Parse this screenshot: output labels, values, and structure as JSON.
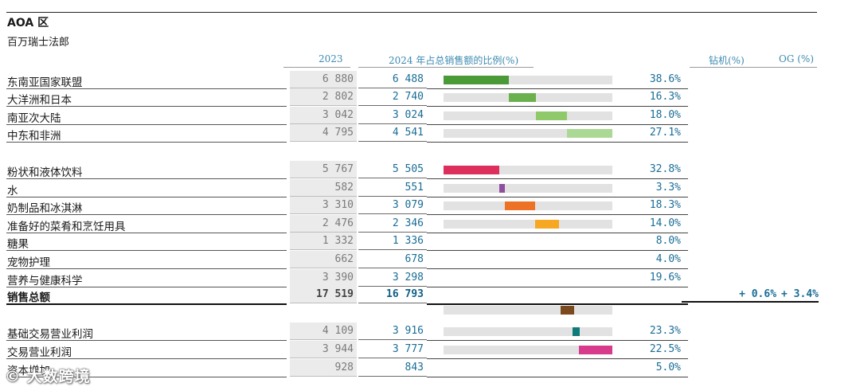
{
  "title": "AOA 区",
  "subtitle": "百万瑞士法郎",
  "headers": {
    "year_2023": "2023",
    "year_2024_share": "2024 年占总销售额的比例(%)",
    "organic": "钻机(%)",
    "og": "OG (%)"
  },
  "regions": [
    {
      "label": "东南亚国家联盟",
      "v2023": "6 880",
      "v2024": "6 488",
      "pct": "38.6%",
      "share": 38.6,
      "color": "#4a9a38"
    },
    {
      "label": "大洋洲和日本",
      "v2023": "2 802",
      "v2024": "2 740",
      "pct": "16.3%",
      "share": 16.3,
      "color": "#6ab04c"
    },
    {
      "label": "南亚次大陆",
      "v2023": "3 042",
      "v2024": "3 024",
      "pct": "18.0%",
      "share": 18.0,
      "color": "#8fc96a"
    },
    {
      "label": "中东和非洲",
      "v2023": "4 795",
      "v2024": "4 541",
      "pct": "27.1%",
      "share": 27.1,
      "color": "#acd895"
    }
  ],
  "categories": [
    {
      "label": "粉状和液体饮料",
      "v2023": "5 767",
      "v2024": "5 505",
      "pct": "32.8%",
      "share": 32.8,
      "color": "#dc2f5c",
      "bar": true
    },
    {
      "label": "水",
      "v2023": "582",
      "v2024": "551",
      "pct": "3.3%",
      "share": 3.3,
      "color": "#8f4f9e",
      "bar": true
    },
    {
      "label": "奶制品和冰淇淋",
      "v2023": "3 310",
      "v2024": "3 079",
      "pct": "18.3%",
      "share": 18.3,
      "color": "#ee7226",
      "bar": true
    },
    {
      "label": "准备好的菜肴和烹饪用具",
      "v2023": "2 476",
      "v2024": "2 346",
      "pct": "14.0%",
      "share": 14.0,
      "color": "#f6a823",
      "bar": true
    },
    {
      "label": "糖果",
      "v2023": "1 332",
      "v2024": "1 336",
      "pct": "8.0%",
      "share": 8.0,
      "color": "#7a4a1e",
      "bar": false
    },
    {
      "label": "宠物护理",
      "v2023": "662",
      "v2024": "678",
      "pct": "4.0%",
      "share": 4.0,
      "color": "#0f7a7a",
      "bar": false
    },
    {
      "label": "营养与健康科学",
      "v2023": "3 390",
      "v2024": "3 298",
      "pct": "19.6%",
      "share": 19.6,
      "color": "#d83a8c",
      "bar": false
    }
  ],
  "total": {
    "label": "销售总额",
    "v2023": "17 519",
    "v2024": "16 793",
    "growth_rig": "+ 0.6%",
    "growth_og": "+ 3.4%"
  },
  "extra_bar": {
    "start": 69.4,
    "share": 8.0,
    "color": "#7a4a1e"
  },
  "profit": [
    {
      "label": "基础交易营业利润",
      "v2023": "4 109",
      "v2024": "3 916",
      "pct": "23.3%",
      "start": 76.6,
      "share": 4.0,
      "color": "#0f7a7a",
      "bar": true
    },
    {
      "label": "交易营业利润",
      "v2023": "3 944",
      "v2024": "3 777",
      "pct": "22.5%",
      "start": 80.4,
      "share": 19.6,
      "color": "#d83a8c",
      "bar": true
    },
    {
      "label": "资本增加",
      "v2023": "928",
      "v2024": "843",
      "pct": "5.0%",
      "bar": false
    }
  ],
  "watermark": "© 大数跨境"
}
